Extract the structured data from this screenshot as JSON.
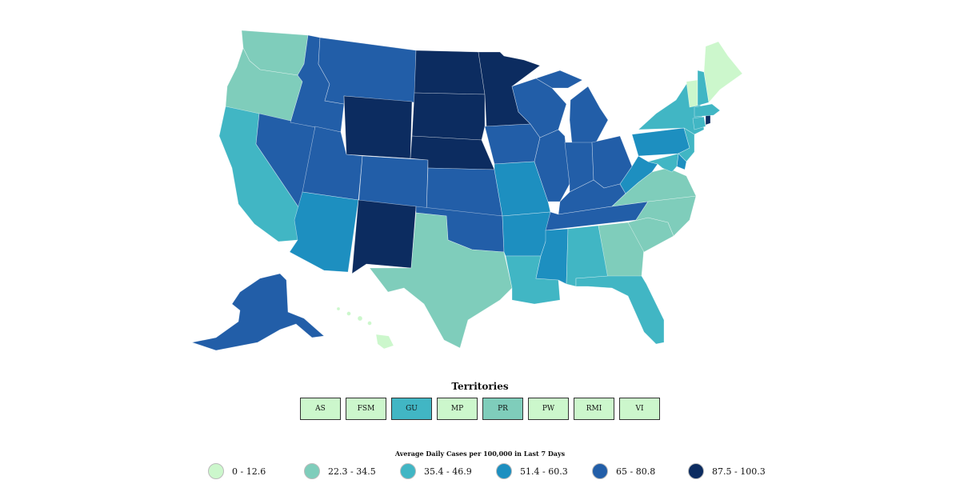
{
  "colors": {
    "bin1": "#ccf7cc",
    "bin2": "#7fcdbb",
    "bin3": "#41b6c4",
    "bin4": "#1d8fc0",
    "bin5": "#225ea8",
    "bin6": "#0c2c60"
  },
  "territories": {
    "title": "Territories",
    "items": [
      {
        "label": "AS",
        "bin": "bin1"
      },
      {
        "label": "FSM",
        "bin": "bin1"
      },
      {
        "label": "GU",
        "bin": "bin3"
      },
      {
        "label": "MP",
        "bin": "bin1"
      },
      {
        "label": "PR",
        "bin": "bin2"
      },
      {
        "label": "PW",
        "bin": "bin1"
      },
      {
        "label": "RMI",
        "bin": "bin1"
      },
      {
        "label": "VI",
        "bin": "bin1"
      }
    ]
  },
  "legend": {
    "title": "Average Daily Cases per 100,000 in Last 7 Days",
    "items": [
      {
        "label": "0 - 12.6",
        "bin": "bin1"
      },
      {
        "label": "22.3 - 34.5",
        "bin": "bin2"
      },
      {
        "label": "35.4 - 46.9",
        "bin": "bin3"
      },
      {
        "label": "51.4 - 60.3",
        "bin": "bin4"
      },
      {
        "label": "65 - 80.8",
        "bin": "bin5"
      },
      {
        "label": "87.5 - 100.3",
        "bin": "bin6"
      }
    ]
  },
  "states": {
    "WA": "bin2",
    "OR": "bin2",
    "CA": "bin3",
    "NV": "bin5",
    "ID": "bin5",
    "MT": "bin5",
    "WY": "bin6",
    "UT": "bin5",
    "AZ": "bin4",
    "CO": "bin5",
    "NM": "bin6",
    "ND": "bin6",
    "SD": "bin6",
    "NE": "bin6",
    "KS": "bin5",
    "OK": "bin5",
    "TX": "bin2",
    "MN": "bin6",
    "IA": "bin5",
    "MO": "bin4",
    "AR": "bin4",
    "LA": "bin3",
    "WI": "bin5",
    "IL": "bin5",
    "MI": "bin5",
    "IN": "bin5",
    "OH": "bin5",
    "KY": "bin5",
    "TN": "bin5",
    "MS": "bin4",
    "AL": "bin3",
    "GA": "bin2",
    "FL": "bin3",
    "SC": "bin2",
    "NC": "bin2",
    "VA": "bin2",
    "WV": "bin4",
    "PA": "bin4",
    "NY": "bin3",
    "NJ": "bin3",
    "DE": "bin4",
    "MD": "bin3",
    "CT": "bin3",
    "RI": "bin6",
    "MA": "bin3",
    "VT": "bin1",
    "NH": "bin3",
    "ME": "bin1",
    "AK": "bin5",
    "HI": "bin1"
  }
}
